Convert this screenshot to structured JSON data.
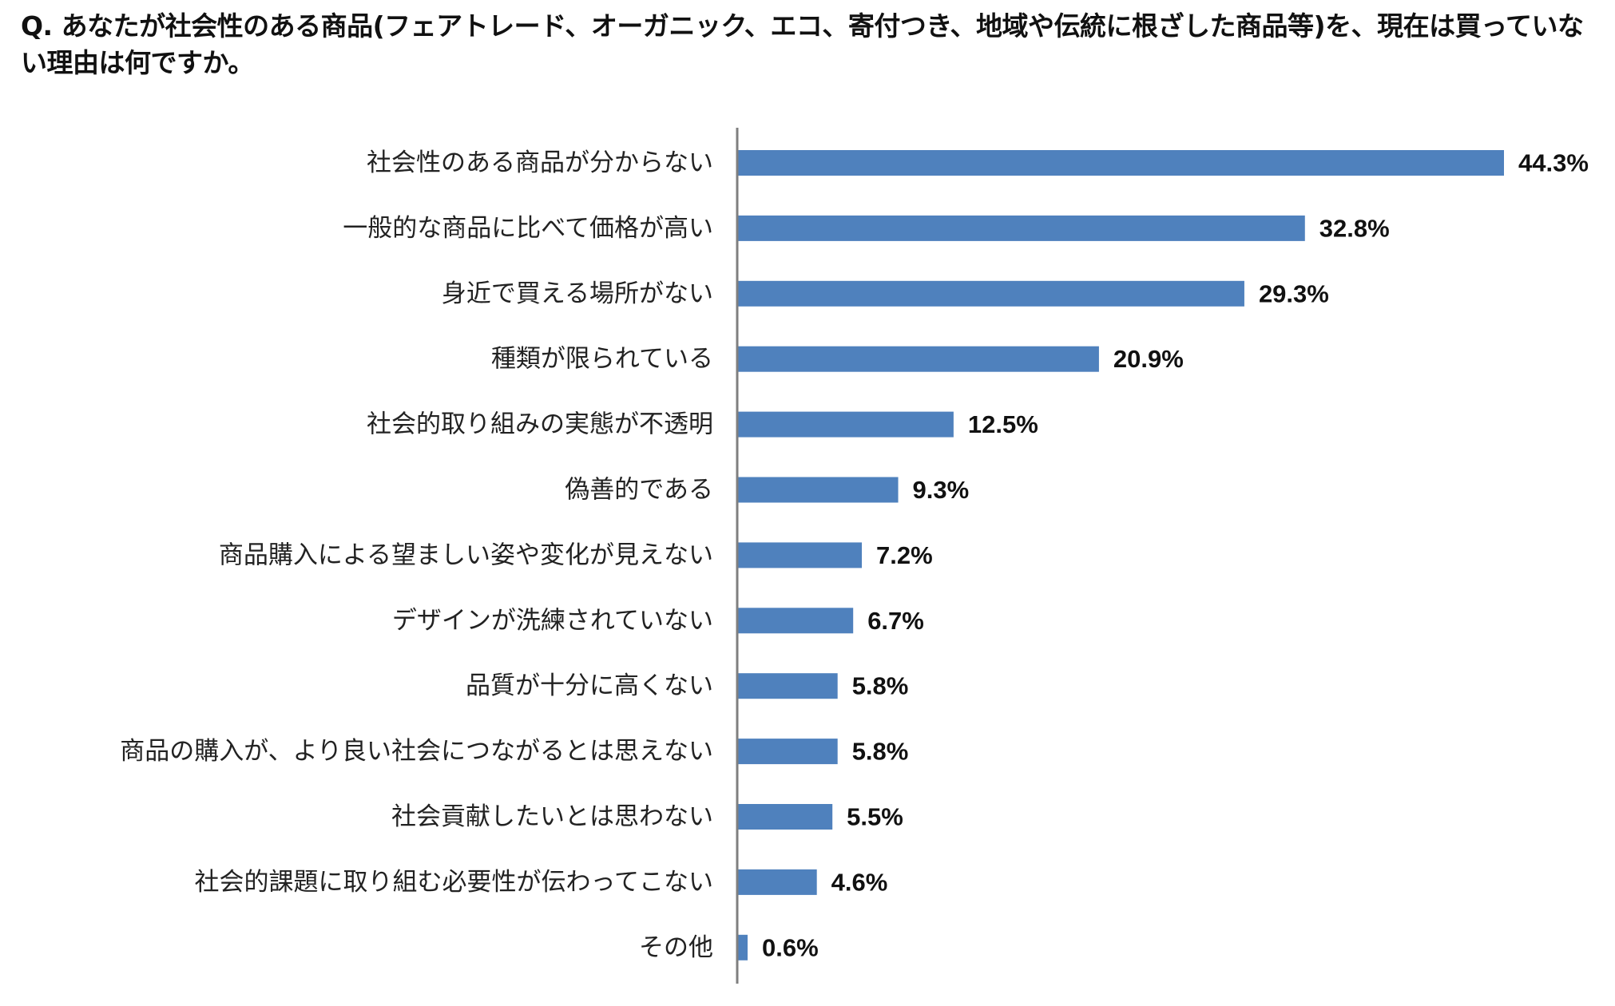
{
  "question": "Q. あなたが社会性のある商品(フェアトレード、オーガニック、エコ、寄付つき、地域や伝統に根ざした商品等)を、現在は買っていない理由は何ですか。",
  "chart_data": {
    "type": "bar",
    "orientation": "horizontal",
    "title": "",
    "xlabel": "",
    "ylabel": "",
    "unit": "%",
    "value_labels": true,
    "grid": false,
    "bar_color": "#4f81bd",
    "axis_color": "#7f7f7f",
    "categories": [
      "社会性のある商品が分からない",
      "一般的な商品に比べて価格が高い",
      "身近で買える場所がない",
      "種類が限られている",
      "社会的取り組みの実態が不透明",
      "偽善的である",
      "商品購入による望ましい姿や変化が見えない",
      "デザインが洗練されていない",
      "品質が十分に高くない",
      "商品の購入が、より良い社会につながるとは思えない",
      "社会貢献したいとは思わない",
      "社会的課題に取り組む必要性が伝わってこない",
      "その他"
    ],
    "values": [
      44.3,
      32.8,
      29.3,
      20.9,
      12.5,
      9.3,
      7.2,
      6.7,
      5.8,
      5.8,
      5.5,
      4.6,
      0.6
    ],
    "value_texts": [
      "44.3%",
      "32.8%",
      "29.3%",
      "20.9%",
      "12.5%",
      "9.3%",
      "7.2%",
      "6.7%",
      "5.8%",
      "5.8%",
      "5.5%",
      "4.6%",
      "0.6%"
    ]
  }
}
